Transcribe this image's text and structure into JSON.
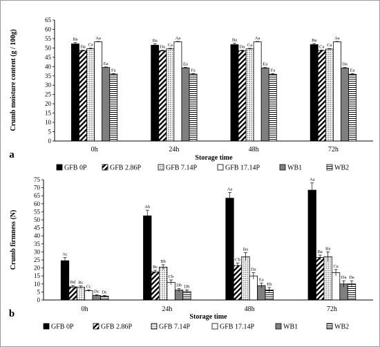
{
  "chart_data": [
    {
      "type": "bar",
      "panel_label": "a",
      "ylabel": "Crumb moisture content (g / 100g)",
      "xlabel": "Storage time",
      "ylim": [
        0,
        65
      ],
      "yticks": [
        0,
        5,
        10,
        15,
        20,
        25,
        30,
        35,
        40,
        45,
        50,
        55,
        60,
        65
      ],
      "categories": [
        "0h",
        "24h",
        "48h",
        "72h"
      ],
      "series": [
        {
          "name": "GFB 0P",
          "values": [
            52.2,
            51.5,
            51.8,
            51.8
          ],
          "errors": [
            0.7,
            0.7,
            0.7,
            0.6
          ],
          "labels": [
            "Ba",
            "Ba",
            "Ba",
            "Ba"
          ]
        },
        {
          "name": "GFB 2.86P",
          "values": [
            48.5,
            48.5,
            48.5,
            48.6
          ],
          "errors": [
            0.3,
            0.3,
            0.3,
            0.3
          ],
          "labels": [
            "Da",
            "Da",
            "Da",
            "Ca"
          ]
        },
        {
          "name": "GFB 7.14P",
          "values": [
            49.6,
            49.5,
            49.5,
            49.4
          ],
          "errors": [
            0.3,
            0.3,
            0.3,
            0.3
          ],
          "labels": [
            "Ca",
            "Ca",
            "Ca",
            "Ca"
          ]
        },
        {
          "name": "GFB 17.14P",
          "values": [
            53.3,
            53.3,
            53.3,
            53.3
          ],
          "errors": [
            0.2,
            0.2,
            0.2,
            0.2
          ],
          "labels": [
            "Aa",
            "Aa",
            "Aa",
            "Aa"
          ]
        },
        {
          "name": "WB1",
          "values": [
            39.5,
            39.3,
            39.2,
            39.2
          ],
          "errors": [
            0.3,
            0.3,
            0.3,
            0.3
          ],
          "labels": [
            "Ea",
            "Ea",
            "Ea",
            "Da"
          ]
        },
        {
          "name": "WB2",
          "values": [
            36.0,
            36.0,
            35.9,
            35.9
          ],
          "errors": [
            0.3,
            0.3,
            0.3,
            0.3
          ],
          "labels": [
            "Fa",
            "Fa",
            "Fa",
            "Ea"
          ]
        }
      ]
    },
    {
      "type": "bar",
      "panel_label": "b",
      "ylabel": "Crumb firmness (N)",
      "xlabel": "Storage time",
      "ylim": [
        0,
        75
      ],
      "yticks": [
        0,
        5,
        10,
        15,
        20,
        25,
        30,
        35,
        40,
        45,
        50,
        55,
        60,
        65,
        70,
        75
      ],
      "categories": [
        "0h",
        "24h",
        "48h",
        "72h"
      ],
      "series": [
        {
          "name": "GFB 0P",
          "values": [
            24.5,
            52.5,
            63.5,
            68.5
          ],
          "errors": [
            2.0,
            3.5,
            3.5,
            4.5
          ],
          "labels": [
            "Ac",
            "Ab",
            "Aa",
            "Aa"
          ]
        },
        {
          "name": "GFB 2.86P",
          "values": [
            8.2,
            17.5,
            21.5,
            26.5
          ],
          "errors": [
            0.8,
            1.0,
            1.5,
            1.5
          ],
          "labels": [
            "Bd",
            "Bc",
            "Cb",
            "Ba"
          ]
        },
        {
          "name": "GFB 7.14P",
          "values": [
            8.0,
            20.5,
            27.0,
            27.0
          ],
          "errors": [
            0.8,
            1.5,
            2.5,
            3.0
          ],
          "labels": [
            "Bc",
            "Bb",
            "Ba",
            "Ba"
          ]
        },
        {
          "name": "GFB 17.14P",
          "values": [
            5.8,
            11.0,
            15.0,
            17.0
          ],
          "errors": [
            0.5,
            1.5,
            2.0,
            2.0
          ],
          "labels": [
            "Cc",
            "Cb",
            "Da",
            "Ca"
          ]
        },
        {
          "name": "WB1",
          "values": [
            2.8,
            6.2,
            9.0,
            10.0
          ],
          "errors": [
            0.4,
            1.0,
            1.5,
            2.0
          ],
          "labels": [
            "Dc",
            "Db",
            "Ea",
            "Da"
          ]
        },
        {
          "name": "WB2",
          "values": [
            2.5,
            5.3,
            6.3,
            10.0
          ],
          "errors": [
            0.4,
            1.0,
            1.5,
            2.0
          ],
          "labels": [
            "Dc",
            "Db",
            "Eb",
            "Da"
          ]
        }
      ]
    }
  ],
  "patterns": [
    "solid-black",
    "diagonal-hatch",
    "dotted",
    "white",
    "solid-gray",
    "horizontal-lines"
  ],
  "colors": {
    "black": "#000000",
    "gray": "#7f7f7f",
    "white": "#ffffff"
  }
}
